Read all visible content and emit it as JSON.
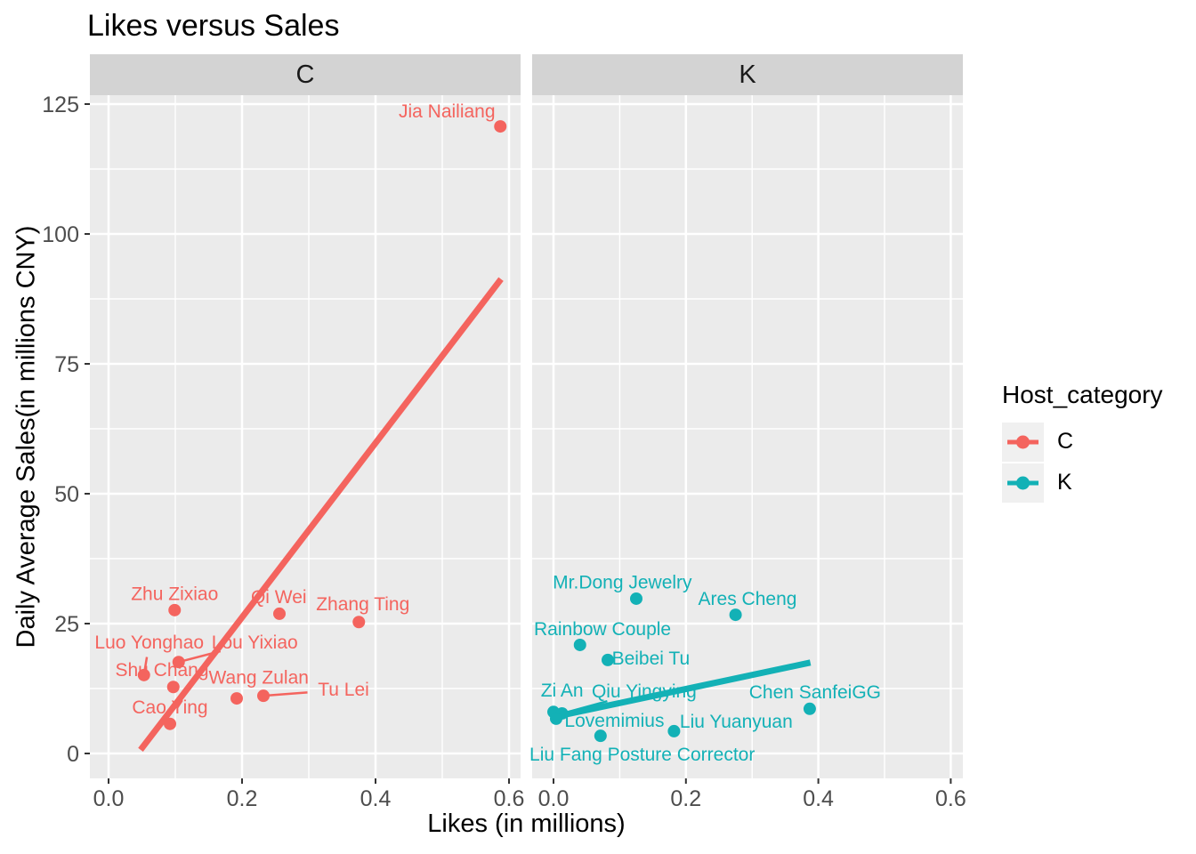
{
  "title": "Likes versus Sales",
  "legend": {
    "title": "Host_category",
    "entries": [
      {
        "label": "C",
        "color": "#F4645E"
      },
      {
        "label": "K",
        "color": "#13B1B6"
      }
    ]
  },
  "colors": {
    "panel_bg": "#EBEBEB",
    "strip_bg": "#D3D3D3",
    "grid": "#FFFFFF",
    "tick_mark": "#333333",
    "tick_text": "#4D4D4D",
    "series_c": "#F4645E",
    "series_k": "#13B1B6"
  },
  "chart_data": {
    "type": "scatter",
    "title": "Likes versus Sales",
    "xlabel": "Likes (in millions)",
    "ylabel": "Daily Average Sales(in millions CNY)",
    "facet_variable": "Host_category",
    "x_ticks": [
      0,
      0.2,
      0.4,
      0.6
    ],
    "x_tick_labels": [
      "0.0",
      "0.2",
      "0.4",
      "0.6"
    ],
    "x_minor": [
      0.1,
      0.3,
      0.5
    ],
    "y_ticks": [
      0,
      25,
      50,
      75,
      100,
      125
    ],
    "y_tick_labels": [
      "0",
      "25",
      "50",
      "75",
      "100",
      "125"
    ],
    "y_minor": [
      12.5,
      37.5,
      62.5,
      87.5,
      112.5
    ],
    "xlim": [
      -0.028,
      0.645
    ],
    "ylim": [
      -4.8,
      126.7
    ],
    "grid": true,
    "legend_position": "right",
    "facets": [
      {
        "label": "C",
        "color": "#F4645E",
        "trend": {
          "x1": 0.048,
          "y1": 0.7,
          "x2": 0.588,
          "y2": 91.3
        },
        "points": [
          {
            "name": "Jia Nailiang",
            "x": 0.587,
            "y": 120.7,
            "label_x": 0.507,
            "label_y": 123.6,
            "leader": false
          },
          {
            "name": "Zhu Zixiao",
            "x": 0.099,
            "y": 27.6,
            "label_x": 0.099,
            "label_y": 30.7,
            "leader": false
          },
          {
            "name": "Qi Wei",
            "x": 0.256,
            "y": 26.9,
            "label_x": 0.255,
            "label_y": 30.1,
            "leader": false
          },
          {
            "name": "Zhang Ting",
            "x": 0.375,
            "y": 25.3,
            "label_x": 0.381,
            "label_y": 28.8,
            "leader": false
          },
          {
            "name": "Lou Yixiao",
            "x": 0.105,
            "y": 17.6,
            "label_x": 0.219,
            "label_y": 21.4,
            "leader": true
          },
          {
            "name": "Luo Yonghao",
            "x": 0.053,
            "y": 15.1,
            "label_x": 0.061,
            "label_y": 21.4,
            "leader": true
          },
          {
            "name": "Shu Chang",
            "x": 0.097,
            "y": 12.8,
            "label_x": 0.08,
            "label_y": 16.1,
            "leader": false
          },
          {
            "name": "Wang Zulan",
            "x": 0.192,
            "y": 10.6,
            "label_x": 0.225,
            "label_y": 14.6,
            "leader": false
          },
          {
            "name": "Tu Lei",
            "x": 0.232,
            "y": 11.1,
            "label_x": 0.352,
            "label_y": 12.3,
            "leader": true
          },
          {
            "name": "Cao Ying",
            "x": 0.092,
            "y": 5.7,
            "label_x": 0.092,
            "label_y": 8.9,
            "leader": false
          }
        ]
      },
      {
        "label": "K",
        "color": "#13B1B6",
        "trend": {
          "x1": 0.0,
          "y1": 7.0,
          "x2": 0.388,
          "y2": 17.5
        },
        "points": [
          {
            "name": "Mr.Dong Jewelry",
            "x": 0.125,
            "y": 29.8,
            "label_x": 0.104,
            "label_y": 33.0,
            "leader": false
          },
          {
            "name": "Ares Cheng",
            "x": 0.275,
            "y": 26.7,
            "label_x": 0.293,
            "label_y": 29.8,
            "leader": false
          },
          {
            "name": "Rainbow Couple",
            "x": 0.04,
            "y": 20.9,
            "label_x": 0.074,
            "label_y": 24.0,
            "leader": false
          },
          {
            "name": "Beibei Tu",
            "x": 0.082,
            "y": 18.0,
            "label_x": 0.147,
            "label_y": 18.3,
            "leader": false
          },
          {
            "name": "Zi An",
            "x": 0.0,
            "y": 8.0,
            "label_x": 0.013,
            "label_y": 12.2,
            "leader": false
          },
          {
            "name": "Qiu Yingying",
            "x": 0.013,
            "y": 7.7,
            "label_x": 0.137,
            "label_y": 12.0,
            "leader": true
          },
          {
            "name": "Chen SanfeiGG",
            "x": 0.387,
            "y": 8.6,
            "label_x": 0.395,
            "label_y": 11.8,
            "leader": false
          },
          {
            "name": "Lovemimius",
            "x": 0.004,
            "y": 6.7,
            "label_x": 0.092,
            "label_y": 6.3,
            "leader": false
          },
          {
            "name": "Liu Yuanyuan",
            "x": 0.182,
            "y": 4.3,
            "label_x": 0.276,
            "label_y": 6.2,
            "leader": false
          },
          {
            "name": "Liu Fang Posture Corrector",
            "x": 0.071,
            "y": 3.4,
            "label_x": 0.134,
            "label_y": -0.2,
            "leader": false
          }
        ]
      }
    ]
  }
}
